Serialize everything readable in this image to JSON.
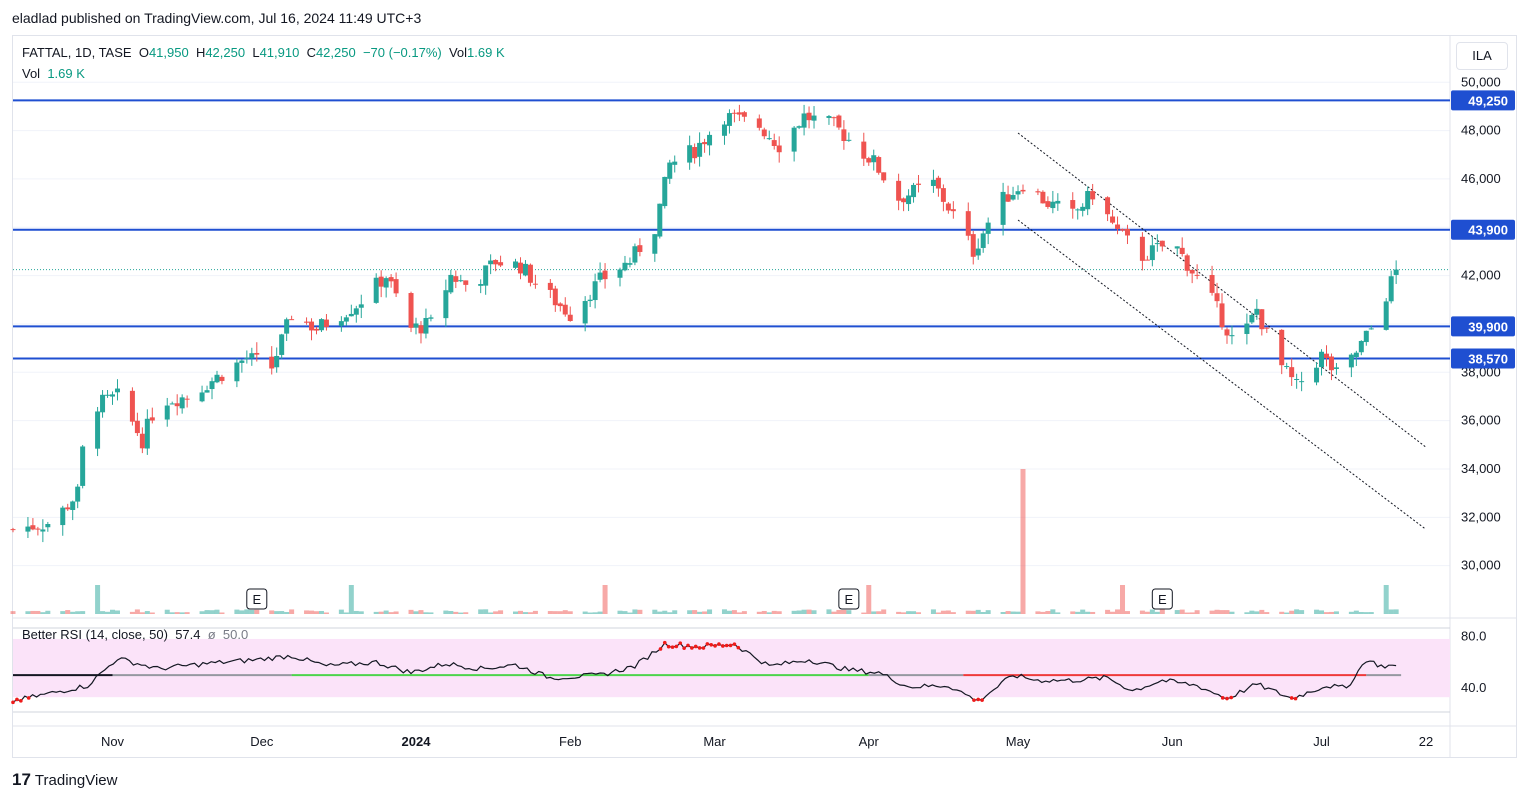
{
  "publisher_line": "eladlad published on TradingView.com, Jul 16, 2024 11:49 UTC+3",
  "legend": {
    "symbol": "FATTAL, 1D, TASE",
    "o_label": "O",
    "o_value": "41,950",
    "h_label": "H",
    "h_value": "42,250",
    "l_label": "L",
    "l_value": "41,910",
    "c_label": "C",
    "c_value": "42,250",
    "change": "−70 (−0.17%)",
    "vol_label": "Vol",
    "vol_value": "1.69 K",
    "vol_line_label": "Vol",
    "vol_line_value": "1.69 K"
  },
  "currency_button": "ILA",
  "rsi_legend": {
    "name": "Better RSI (14, close, 50)",
    "value": "57.4",
    "sym": "ø",
    "mid": "50.0"
  },
  "footer": {
    "logo_mark": "17",
    "logo_text": "TradingView"
  },
  "colors": {
    "up": "#26a69a",
    "down": "#ef5350",
    "level": "#1f4fd1",
    "rsi": "#131722"
  },
  "chart_data": {
    "type": "candlestick",
    "x_tick_labels": [
      "Nov",
      "Dec",
      "2024",
      "Feb",
      "Mar",
      "Apr",
      "May",
      "Jun",
      "Jul",
      "22"
    ],
    "y_tick_values": [
      30000,
      32000,
      34000,
      36000,
      38000,
      40000,
      42000,
      44000,
      46000,
      48000,
      50000
    ],
    "y_tick_labels": [
      "30,000",
      "32,000",
      "34,000",
      "36,000",
      "38,000",
      "40,000",
      "42,000",
      "44,000",
      "46,000",
      "48,000",
      "50,000"
    ],
    "ylim": [
      28000,
      50300
    ],
    "horizontal_levels": [
      {
        "value": 49250,
        "label": "49,250"
      },
      {
        "value": 43900,
        "label": "43,900"
      },
      {
        "value": 39900,
        "label": "39,900"
      },
      {
        "value": 38570,
        "label": "38,570"
      }
    ],
    "last_price": 42250,
    "earnings_markers": [
      {
        "date": "Nov 30",
        "label": "E"
      },
      {
        "date": "Mar 28",
        "label": "E"
      },
      {
        "date": "May 30",
        "label": "E"
      }
    ],
    "channel_lines": [
      {
        "from": [
          "May 1",
          47900
        ],
        "to": [
          "Jul 22",
          34900
        ]
      },
      {
        "from": [
          "May 1",
          44300
        ],
        "to": [
          "Jul 22",
          31500
        ]
      }
    ],
    "price_anchors": [
      [
        "Oct 12",
        31500
      ],
      [
        "Oct 20",
        31800
      ],
      [
        "Oct 25",
        33000
      ],
      [
        "Oct 27",
        36500
      ],
      [
        "Nov 2",
        37000
      ],
      [
        "Nov 7",
        35200
      ],
      [
        "Nov 10",
        36800
      ],
      [
        "Nov 16",
        37000
      ],
      [
        "Nov 22",
        37800
      ],
      [
        "Nov 28",
        38600
      ],
      [
        "Dec 3",
        38200
      ],
      [
        "Dec 7",
        40400
      ],
      [
        "Dec 12",
        39800
      ],
      [
        "Dec 20",
        40800
      ],
      [
        "Dec 26",
        42000
      ],
      [
        "Dec 31",
        39800
      ],
      [
        "Jan 4",
        40000
      ],
      [
        "Jan 8",
        42000
      ],
      [
        "Jan 12",
        41500
      ],
      [
        "Jan 17",
        42600
      ],
      [
        "Jan 22",
        42400
      ],
      [
        "Jan 26",
        41500
      ],
      [
        "Feb 1",
        40400
      ],
      [
        "Feb 7",
        41800
      ],
      [
        "Feb 13",
        42600
      ],
      [
        "Feb 18",
        44000
      ],
      [
        "Feb 21",
        46600
      ],
      [
        "Feb 26",
        47200
      ],
      [
        "Mar 3",
        48600
      ],
      [
        "Mar 10",
        48200
      ],
      [
        "Mar 14",
        47400
      ],
      [
        "Mar 19",
        48600
      ],
      [
        "Mar 25",
        48200
      ],
      [
        "Apr 2",
        46700
      ],
      [
        "Apr 7",
        45200
      ],
      [
        "Apr 14",
        45800
      ],
      [
        "Apr 19",
        44200
      ],
      [
        "Apr 22",
        43000
      ],
      [
        "Apr 27",
        45000
      ],
      [
        "May 2",
        45800
      ],
      [
        "May 7",
        45000
      ],
      [
        "May 12",
        44500
      ],
      [
        "May 16",
        45400
      ],
      [
        "May 21",
        43800
      ],
      [
        "May 26",
        42800
      ],
      [
        "Jun 1",
        43400
      ],
      [
        "Jun 4",
        42500
      ],
      [
        "Jun 9",
        41000
      ],
      [
        "Jun 14",
        39000
      ],
      [
        "Jun 18",
        40600
      ],
      [
        "Jun 22",
        38500
      ],
      [
        "Jun 26",
        37400
      ],
      [
        "Jul 1",
        38700
      ],
      [
        "Jul 4",
        37900
      ],
      [
        "Jul 7",
        38500
      ],
      [
        "Jul 11",
        39800
      ],
      [
        "Jul 12",
        42300
      ],
      [
        "Jul 14",
        41200
      ],
      [
        "Jul 16",
        42250
      ]
    ],
    "volume_spikes": [
      {
        "date": "May 2",
        "relative": 1.0
      }
    ],
    "rsi": {
      "name": "Better RSI (14, close, 50)",
      "value": 57.4,
      "mid": 50.0,
      "tick_labels": [
        "80.0",
        "40.0"
      ],
      "band_range": [
        33,
        78
      ],
      "anchors": [
        [
          "Oct 12",
          30
        ],
        [
          "Oct 27",
          42
        ],
        [
          "Nov 2",
          63
        ],
        [
          "Nov 10",
          55
        ],
        [
          "Nov 20",
          59
        ],
        [
          "Nov 30",
          62
        ],
        [
          "Dec 7",
          65
        ],
        [
          "Dec 14",
          57
        ],
        [
          "Dec 24",
          60
        ],
        [
          "Dec 31",
          52
        ],
        [
          "Jan 7",
          59
        ],
        [
          "Jan 14",
          55
        ],
        [
          "Jan 21",
          58
        ],
        [
          "Jan 28",
          48
        ],
        [
          "Feb 7",
          50
        ],
        [
          "Feb 14",
          57
        ],
        [
          "Feb 20",
          74
        ],
        [
          "Feb 27",
          72
        ],
        [
          "Mar 5",
          74
        ],
        [
          "Mar 12",
          57
        ],
        [
          "Mar 20",
          62
        ],
        [
          "Mar 28",
          54
        ],
        [
          "Apr 3",
          52
        ],
        [
          "Apr 9",
          41
        ],
        [
          "Apr 17",
          42
        ],
        [
          "Apr 23",
          30
        ],
        [
          "Apr 30",
          50
        ],
        [
          "May 5",
          46
        ],
        [
          "May 12",
          46
        ],
        [
          "May 19",
          48
        ],
        [
          "May 24",
          38
        ],
        [
          "May 30",
          46
        ],
        [
          "Jun 6",
          42
        ],
        [
          "Jun 12",
          32
        ],
        [
          "Jun 18",
          43
        ],
        [
          "Jun 25",
          32
        ],
        [
          "Jul 2",
          42
        ],
        [
          "Jul 6",
          40
        ],
        [
          "Jul 10",
          62
        ],
        [
          "Jul 13",
          57
        ],
        [
          "Jul 16",
          57.4
        ]
      ]
    }
  }
}
